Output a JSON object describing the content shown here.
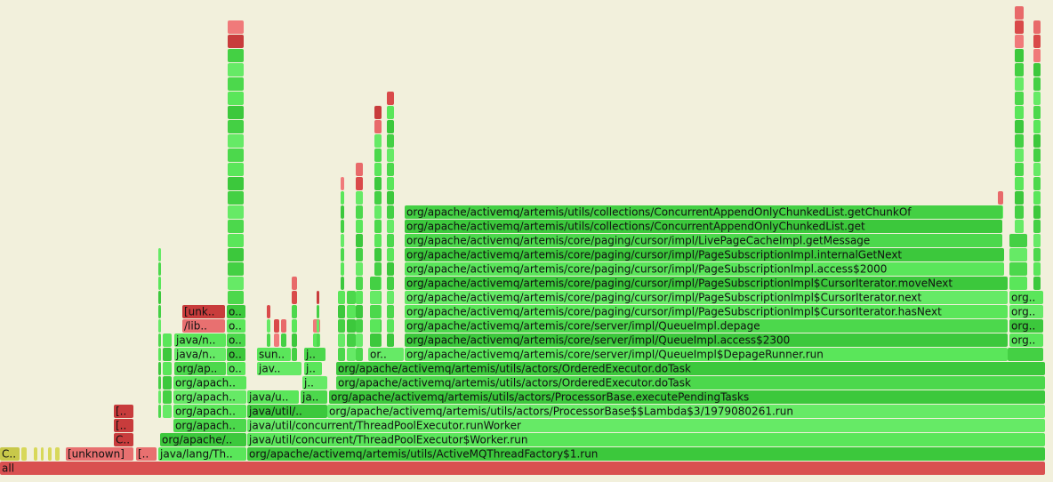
{
  "frames": [
    {
      "label": "all"
    },
    {
      "label": "C.."
    },
    {
      "label": "[unknown]"
    },
    {
      "label": "[.."
    },
    {
      "label": "java/lang/Th.."
    },
    {
      "label": "org/apache/activemq/artemis/utils/ActiveMQThreadFactory$1.run"
    },
    {
      "label": "C.."
    },
    {
      "label": "org/apache/.."
    },
    {
      "label": "java/util/concurrent/ThreadPoolExecutor$Worker.run"
    },
    {
      "label": "[.."
    },
    {
      "label": "org/apach.."
    },
    {
      "label": "java/util/concurrent/ThreadPoolExecutor.runWorker"
    },
    {
      "label": "[.."
    },
    {
      "label": "org/apach.."
    },
    {
      "label": "java/util/.."
    },
    {
      "label": "org/apache/activemq/artemis/utils/actors/ProcessorBase$$Lambda$3/1979080261.run"
    },
    {
      "label": "org/apach.."
    },
    {
      "label": "java/u.."
    },
    {
      "label": "ja.."
    },
    {
      "label": "org/apache/activemq/artemis/utils/actors/ProcessorBase.executePendingTasks"
    },
    {
      "label": "org/apach.."
    },
    {
      "label": "j.."
    },
    {
      "label": "org/apache/activemq/artemis/utils/actors/OrderedExecutor.doTask"
    },
    {
      "label": "org/ap.."
    },
    {
      "label": "o.."
    },
    {
      "label": "jav.."
    },
    {
      "label": "j.."
    },
    {
      "label": "org/apache/activemq/artemis/utils/actors/OrderedExecutor.doTask"
    },
    {
      "label": "java/n.."
    },
    {
      "label": "o.."
    },
    {
      "label": "sun.."
    },
    {
      "label": "j.."
    },
    {
      "label": "or.."
    },
    {
      "label": "org/apache/activemq/artemis/core/server/impl/QueueImpl$DepageRunner.run"
    },
    {
      "label": "java/n.."
    },
    {
      "label": "o.."
    },
    {
      "label": "org/apache/activemq/artemis/core/server/impl/QueueImpl.access$2300"
    },
    {
      "label": "org.."
    },
    {
      "label": "/lib.."
    },
    {
      "label": "o.."
    },
    {
      "label": "org/apache/activemq/artemis/core/server/impl/QueueImpl.depage"
    },
    {
      "label": "org.."
    },
    {
      "label": "[unk.."
    },
    {
      "label": "o.."
    },
    {
      "label": "org/apache/activemq/artemis/core/paging/cursor/impl/PageSubscriptionImpl$CursorIterator.hasNext"
    },
    {
      "label": "org.."
    },
    {
      "label": "org/apache/activemq/artemis/core/paging/cursor/impl/PageSubscriptionImpl$CursorIterator.next"
    },
    {
      "label": "org.."
    },
    {
      "label": "org/apache/activemq/artemis/core/paging/cursor/impl/PageSubscriptionImpl$CursorIterator.moveNext"
    },
    {
      "label": "org/apache/activemq/artemis/core/paging/cursor/impl/PageSubscriptionImpl.access$2000"
    },
    {
      "label": "org/apache/activemq/artemis/core/paging/cursor/impl/PageSubscriptionImpl.internalGetNext"
    },
    {
      "label": "org/apache/activemq/artemis/core/paging/cursor/impl/LivePageCacheImpl.getMessage"
    },
    {
      "label": "org/apache/activemq/artemis/utils/collections/ConcurrentAppendOnlyChunkedList.get"
    },
    {
      "label": "org/apache/activemq/artemis/utils/collections/ConcurrentAppendOnlyChunkedList.getChunkOf"
    }
  ]
}
